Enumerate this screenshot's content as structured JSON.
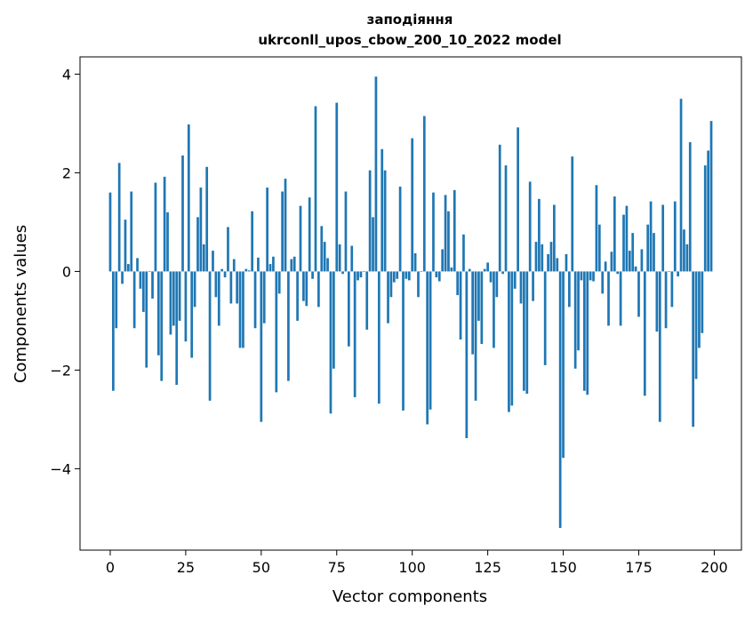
{
  "chart_data": {
    "type": "bar",
    "title_line1": "заподіяння",
    "title_line2": "ukrconll_upos_cbow_200_10_2022 model",
    "xlabel": "Vector components",
    "ylabel": "Components values",
    "xlim": [
      -10,
      209
    ],
    "ylim": [
      -5.65,
      4.35
    ],
    "xticks": [
      0,
      25,
      50,
      75,
      100,
      125,
      150,
      175,
      200
    ],
    "yticks": [
      -4,
      -2,
      0,
      2,
      4
    ],
    "ytick_labels": [
      "−4",
      "−2",
      "0",
      "2",
      "4"
    ],
    "grid": false,
    "bar_color": "#1f77b4",
    "x": [
      0,
      1,
      2,
      3,
      4,
      5,
      6,
      7,
      8,
      9,
      10,
      11,
      12,
      13,
      14,
      15,
      16,
      17,
      18,
      19,
      20,
      21,
      22,
      23,
      24,
      25,
      26,
      27,
      28,
      29,
      30,
      31,
      32,
      33,
      34,
      35,
      36,
      37,
      38,
      39,
      40,
      41,
      42,
      43,
      44,
      45,
      46,
      47,
      48,
      49,
      50,
      51,
      52,
      53,
      54,
      55,
      56,
      57,
      58,
      59,
      60,
      61,
      62,
      63,
      64,
      65,
      66,
      67,
      68,
      69,
      70,
      71,
      72,
      73,
      74,
      75,
      76,
      77,
      78,
      79,
      80,
      81,
      82,
      83,
      84,
      85,
      86,
      87,
      88,
      89,
      90,
      91,
      92,
      93,
      94,
      95,
      96,
      97,
      98,
      99,
      100,
      101,
      102,
      103,
      104,
      105,
      106,
      107,
      108,
      109,
      110,
      111,
      112,
      113,
      114,
      115,
      116,
      117,
      118,
      119,
      120,
      121,
      122,
      123,
      124,
      125,
      126,
      127,
      128,
      129,
      130,
      131,
      132,
      133,
      134,
      135,
      136,
      137,
      138,
      139,
      140,
      141,
      142,
      143,
      144,
      145,
      146,
      147,
      148,
      149,
      150,
      151,
      152,
      153,
      154,
      155,
      156,
      157,
      158,
      159,
      160,
      161,
      162,
      163,
      164,
      165,
      166,
      167,
      168,
      169,
      170,
      171,
      172,
      173,
      174,
      175,
      176,
      177,
      178,
      179,
      180,
      181,
      182,
      183,
      184,
      185,
      186,
      187,
      188,
      189,
      190,
      191,
      192,
      193,
      194,
      195,
      196,
      197,
      198,
      199
    ],
    "values": [
      1.6,
      -2.42,
      -1.15,
      2.2,
      -0.25,
      1.05,
      0.15,
      1.62,
      -1.15,
      0.27,
      -0.35,
      -0.82,
      -1.95,
      0.0,
      -0.55,
      1.8,
      -1.7,
      -2.22,
      1.92,
      1.2,
      -1.28,
      -1.1,
      -2.3,
      -1.0,
      2.35,
      -1.42,
      2.98,
      -1.75,
      -0.72,
      1.1,
      1.7,
      0.55,
      2.12,
      -2.62,
      0.42,
      -0.52,
      -1.1,
      0.05,
      -0.12,
      0.9,
      -0.65,
      0.25,
      -0.65,
      -1.55,
      -1.55,
      0.05,
      0.02,
      1.22,
      -1.15,
      0.28,
      -3.05,
      -1.05,
      1.7,
      0.15,
      0.3,
      -2.45,
      -0.45,
      1.62,
      1.88,
      -2.22,
      0.25,
      0.3,
      -1.0,
      1.33,
      -0.6,
      -0.7,
      1.5,
      -0.15,
      3.35,
      -0.72,
      0.92,
      0.6,
      0.27,
      -2.88,
      -1.97,
      3.42,
      0.55,
      -0.05,
      1.62,
      -1.52,
      0.52,
      -2.55,
      -0.18,
      -0.12,
      0.0,
      -1.18,
      2.05,
      1.1,
      3.95,
      -2.68,
      2.48,
      2.05,
      -1.05,
      -0.52,
      -0.22,
      -0.15,
      1.72,
      -2.82,
      -0.15,
      -0.18,
      2.7,
      0.37,
      -0.52,
      0.0,
      3.15,
      -3.1,
      -2.8,
      1.6,
      -0.12,
      -0.2,
      0.45,
      1.55,
      1.22,
      0.08,
      1.65,
      -0.48,
      -1.38,
      0.75,
      -3.38,
      0.05,
      -1.68,
      -2.62,
      -1.0,
      -1.47,
      0.05,
      0.18,
      -0.22,
      -1.55,
      -0.52,
      2.57,
      -0.05,
      2.15,
      -2.85,
      -2.72,
      -0.35,
      2.92,
      -0.65,
      -2.42,
      -2.48,
      1.82,
      -0.6,
      0.6,
      1.47,
      0.55,
      -1.9,
      0.35,
      0.6,
      1.35,
      0.27,
      -5.2,
      -3.78,
      0.35,
      -0.72,
      2.33,
      -1.97,
      -1.6,
      -0.18,
      -2.42,
      -2.5,
      -0.18,
      -0.2,
      1.75,
      0.95,
      -0.45,
      0.2,
      -1.1,
      0.4,
      1.52,
      -0.05,
      -1.1,
      1.15,
      1.33,
      0.42,
      0.78,
      0.1,
      -0.92,
      0.45,
      -2.52,
      0.95,
      1.42,
      0.78,
      -1.22,
      -3.05,
      1.35,
      -1.15,
      0.0,
      -0.72,
      1.42,
      -0.1,
      3.5,
      0.85,
      0.55,
      2.62,
      -3.15,
      -2.18,
      -1.55,
      -1.25,
      2.15,
      2.45,
      3.05
    ]
  }
}
